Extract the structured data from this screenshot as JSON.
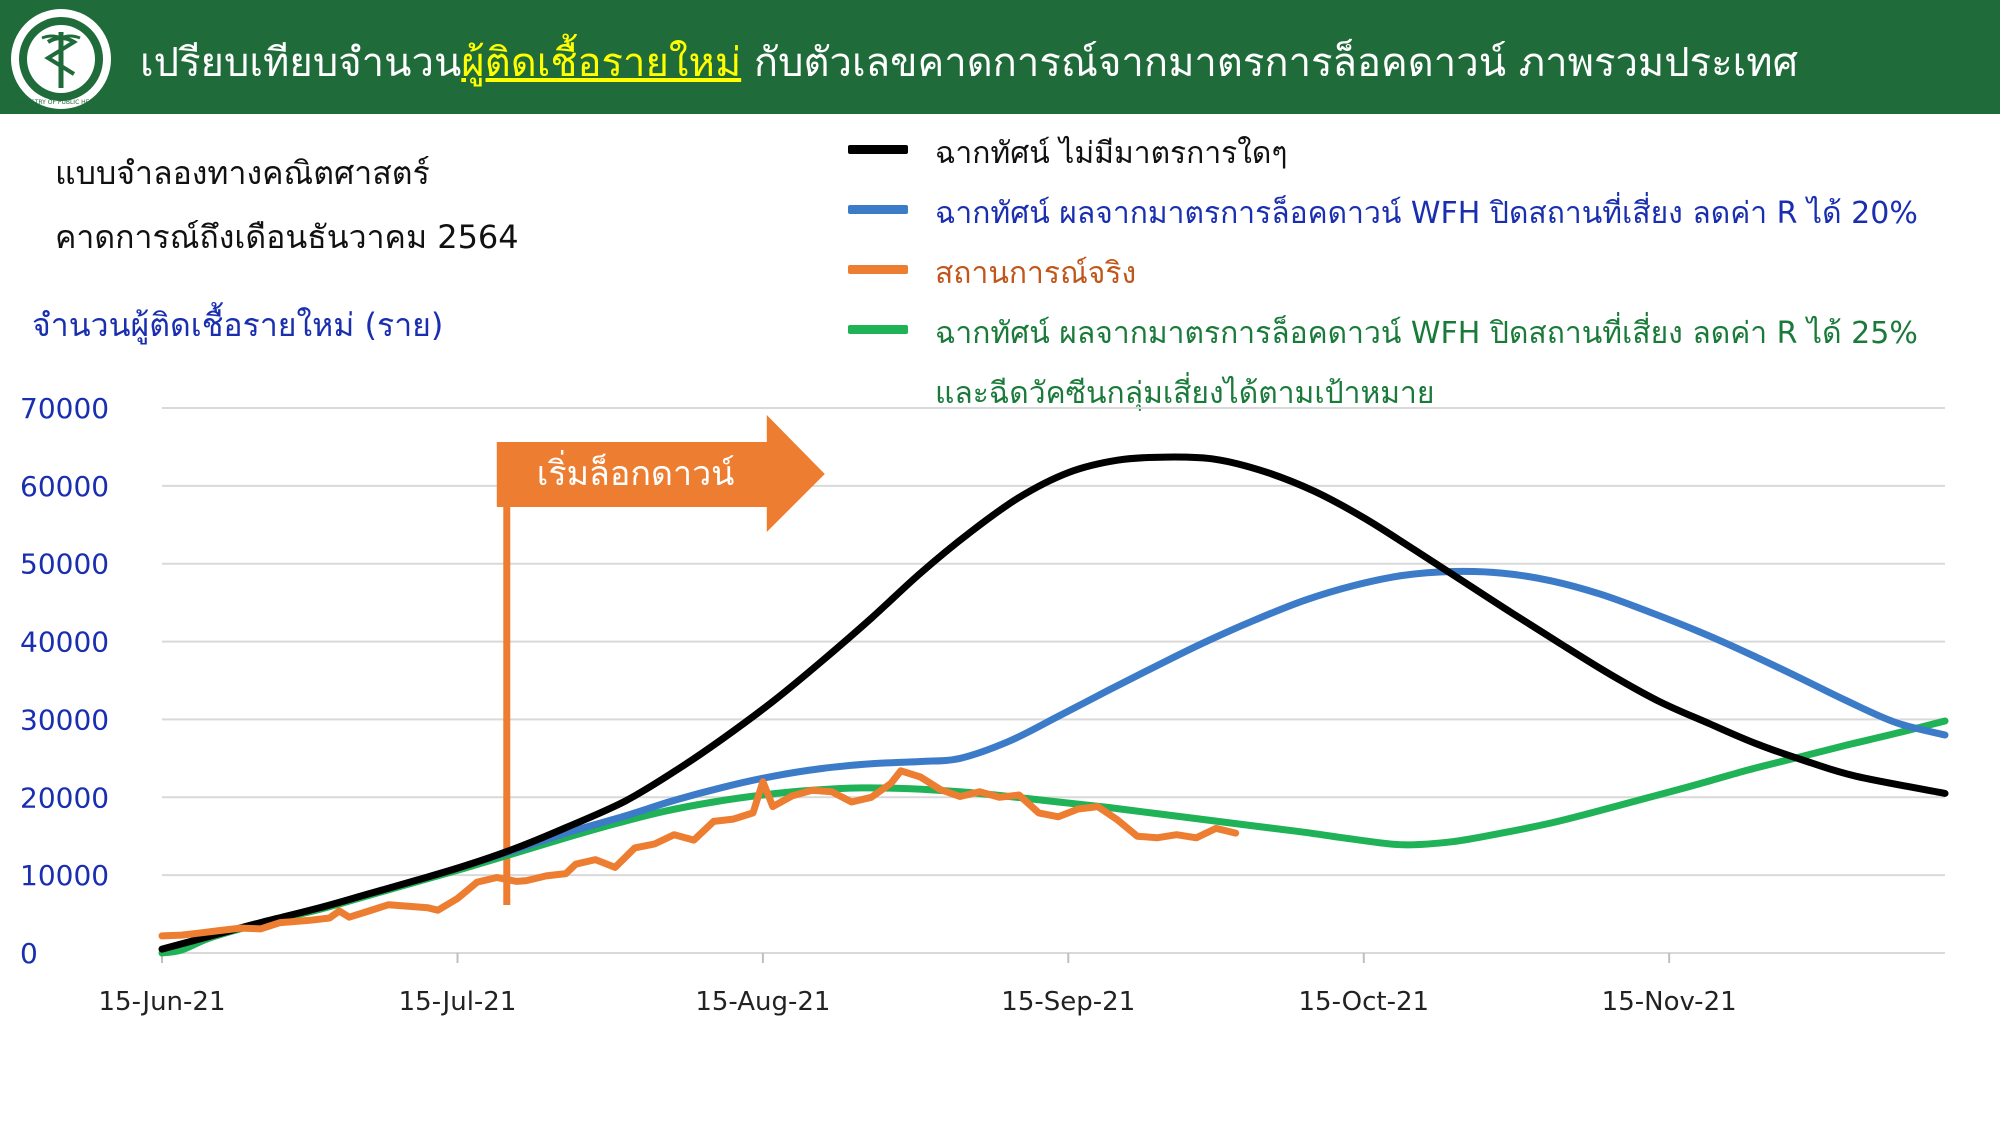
{
  "header": {
    "title_part1": "เปรียบเทียบจำนวน",
    "title_highlight": "ผู้ติดเชื้อรายใหม่",
    "title_part2": " กับตัวเลขคาดการณ์จากมาตรการล็อคดาวน์ ภาพรวมประเทศ",
    "logo_icon": "ministry-of-public-health-seal",
    "logo_text": "MINISTRY OF PUBLIC HEALTH",
    "bg_color": "#1f6b3a",
    "highlight_color": "#ffff00"
  },
  "subtitle": {
    "line1": "แบบจำลองทางคณิตศาสตร์",
    "line2": "คาดการณ์ถึงเดือนธันวาคม 2564"
  },
  "chart_data": {
    "type": "line",
    "ylabel": "จำนวนผู้ติดเชื้อรายใหม่ (ราย)",
    "ylim": [
      0,
      70000
    ],
    "yticks": [
      0,
      10000,
      20000,
      30000,
      40000,
      50000,
      60000,
      70000
    ],
    "xlim": [
      "2021-06-15",
      "2021-12-13"
    ],
    "xticks": [
      {
        "date": "2021-06-15",
        "label": "15-Jun-21"
      },
      {
        "date": "2021-07-15",
        "label": "15-Jul-21"
      },
      {
        "date": "2021-08-15",
        "label": "15-Aug-21"
      },
      {
        "date": "2021-09-15",
        "label": "15-Sep-21"
      },
      {
        "date": "2021-10-15",
        "label": "15-Oct-21"
      },
      {
        "date": "2021-11-15",
        "label": "15-Nov-21"
      }
    ],
    "grid": true,
    "legend_position": "top-right",
    "annotation": {
      "label": "เริ่มล็อกดาวน์",
      "date": "2021-07-20",
      "color": "#ed7d31"
    },
    "series": [
      {
        "name": "ฉากทัศน์ ไม่มีมาตรการใดๆ",
        "color": "#000000",
        "points": [
          [
            "2021-06-15",
            500
          ],
          [
            "2021-06-20",
            2200
          ],
          [
            "2021-06-25",
            3900
          ],
          [
            "2021-07-01",
            5800
          ],
          [
            "2021-07-06",
            7600
          ],
          [
            "2021-07-11",
            9400
          ],
          [
            "2021-07-16",
            11300
          ],
          [
            "2021-07-21",
            13500
          ],
          [
            "2021-07-26",
            16100
          ],
          [
            "2021-08-01",
            19500
          ],
          [
            "2021-08-06",
            23300
          ],
          [
            "2021-08-11",
            27600
          ],
          [
            "2021-08-16",
            32300
          ],
          [
            "2021-08-21",
            37500
          ],
          [
            "2021-08-26",
            43000
          ],
          [
            "2021-08-31",
            48800
          ],
          [
            "2021-09-05",
            54000
          ],
          [
            "2021-09-10",
            58500
          ],
          [
            "2021-09-15",
            61700
          ],
          [
            "2021-09-20",
            63300
          ],
          [
            "2021-09-25",
            63700
          ],
          [
            "2021-09-30",
            63400
          ],
          [
            "2021-10-05",
            61800
          ],
          [
            "2021-10-10",
            59300
          ],
          [
            "2021-10-15",
            55900
          ],
          [
            "2021-10-20",
            51900
          ],
          [
            "2021-10-25",
            47800
          ],
          [
            "2021-10-30",
            43700
          ],
          [
            "2021-11-04",
            39700
          ],
          [
            "2021-11-09",
            35800
          ],
          [
            "2021-11-14",
            32300
          ],
          [
            "2021-11-19",
            29500
          ],
          [
            "2021-11-24",
            26800
          ],
          [
            "2021-11-29",
            24600
          ],
          [
            "2021-12-04",
            22700
          ],
          [
            "2021-12-13",
            20500
          ]
        ]
      },
      {
        "name": "ฉากทัศน์ ผลจากมาตรการล็อคดาวน์ WFH ปิดสถานที่เสี่ยง ลดค่า R ได้ 20%",
        "color": "#3c7bc8",
        "points": [
          [
            "2021-07-16",
            11300
          ],
          [
            "2021-07-21",
            13300
          ],
          [
            "2021-07-26",
            15400
          ],
          [
            "2021-08-01",
            17600
          ],
          [
            "2021-08-06",
            19600
          ],
          [
            "2021-08-11",
            21300
          ],
          [
            "2021-08-16",
            22700
          ],
          [
            "2021-08-21",
            23700
          ],
          [
            "2021-08-26",
            24300
          ],
          [
            "2021-08-31",
            24600
          ],
          [
            "2021-09-04",
            25000
          ],
          [
            "2021-09-09",
            27200
          ],
          [
            "2021-09-14",
            30400
          ],
          [
            "2021-09-19",
            33700
          ],
          [
            "2021-09-24",
            36900
          ],
          [
            "2021-09-29",
            40000
          ],
          [
            "2021-10-04",
            42800
          ],
          [
            "2021-10-09",
            45300
          ],
          [
            "2021-10-14",
            47200
          ],
          [
            "2021-10-19",
            48500
          ],
          [
            "2021-10-24",
            49000
          ],
          [
            "2021-10-29",
            48800
          ],
          [
            "2021-11-03",
            47800
          ],
          [
            "2021-11-08",
            46100
          ],
          [
            "2021-11-13",
            43800
          ],
          [
            "2021-11-18",
            41300
          ],
          [
            "2021-11-23",
            38500
          ],
          [
            "2021-11-28",
            35500
          ],
          [
            "2021-12-03",
            32400
          ],
          [
            "2021-12-08",
            29600
          ],
          [
            "2021-12-13",
            28000
          ]
        ]
      },
      {
        "name": "สถานการณ์จริง",
        "color": "#ed7d31",
        "points": [
          [
            "2021-06-15",
            2200
          ],
          [
            "2021-06-17",
            2300
          ],
          [
            "2021-06-19",
            2600
          ],
          [
            "2021-06-21",
            2900
          ],
          [
            "2021-06-23",
            3200
          ],
          [
            "2021-06-25",
            3100
          ],
          [
            "2021-06-27",
            3900
          ],
          [
            "2021-06-28",
            4000
          ],
          [
            "2021-06-30",
            4200
          ],
          [
            "2021-07-02",
            4500
          ],
          [
            "2021-07-03",
            5400
          ],
          [
            "2021-07-04",
            4600
          ],
          [
            "2021-07-06",
            5400
          ],
          [
            "2021-07-08",
            6200
          ],
          [
            "2021-07-10",
            6000
          ],
          [
            "2021-07-12",
            5800
          ],
          [
            "2021-07-13",
            5500
          ],
          [
            "2021-07-15",
            7000
          ],
          [
            "2021-07-17",
            9100
          ],
          [
            "2021-07-19",
            9700
          ],
          [
            "2021-07-21",
            9200
          ],
          [
            "2021-07-22",
            9300
          ],
          [
            "2021-07-24",
            9900
          ],
          [
            "2021-07-26",
            10200
          ],
          [
            "2021-07-27",
            11400
          ],
          [
            "2021-07-29",
            12000
          ],
          [
            "2021-07-31",
            11000
          ],
          [
            "2021-08-02",
            13500
          ],
          [
            "2021-08-04",
            14000
          ],
          [
            "2021-08-06",
            15200
          ],
          [
            "2021-08-08",
            14500
          ],
          [
            "2021-08-10",
            16900
          ],
          [
            "2021-08-12",
            17200
          ],
          [
            "2021-08-14",
            18000
          ],
          [
            "2021-08-15",
            22000
          ],
          [
            "2021-08-16",
            18800
          ],
          [
            "2021-08-18",
            20200
          ],
          [
            "2021-08-20",
            20900
          ],
          [
            "2021-08-22",
            20700
          ],
          [
            "2021-08-24",
            19400
          ],
          [
            "2021-08-26",
            20000
          ],
          [
            "2021-08-28",
            21800
          ],
          [
            "2021-08-29",
            23400
          ],
          [
            "2021-08-31",
            22600
          ],
          [
            "2021-09-02",
            21000
          ],
          [
            "2021-09-04",
            20100
          ],
          [
            "2021-09-06",
            20700
          ],
          [
            "2021-09-08",
            20000
          ],
          [
            "2021-09-10",
            20300
          ],
          [
            "2021-09-12",
            18000
          ],
          [
            "2021-09-14",
            17500
          ],
          [
            "2021-09-16",
            18500
          ],
          [
            "2021-09-18",
            18800
          ],
          [
            "2021-09-20",
            17100
          ],
          [
            "2021-09-22",
            15000
          ],
          [
            "2021-09-24",
            14800
          ],
          [
            "2021-09-26",
            15200
          ],
          [
            "2021-09-28",
            14800
          ],
          [
            "2021-09-30",
            16000
          ],
          [
            "2021-10-02",
            15400
          ]
        ]
      },
      {
        "name": "ฉากทัศน์ ผลจากมาตรการล็อคดาวน์ WFH ปิดสถานที่เสี่ยง ลดค่า R ได้ 25%",
        "name_line2": "และฉีดวัคซีนกลุ่มเสี่ยงได้ตามเป้าหมาย",
        "color": "#1fb257",
        "points": [
          [
            "2021-06-15",
            0
          ],
          [
            "2021-06-17",
            400
          ],
          [
            "2021-06-20",
            2000
          ],
          [
            "2021-06-25",
            3800
          ],
          [
            "2021-07-01",
            5600
          ],
          [
            "2021-07-06",
            7400
          ],
          [
            "2021-07-11",
            9200
          ],
          [
            "2021-07-16",
            11000
          ],
          [
            "2021-07-21",
            12900
          ],
          [
            "2021-07-26",
            14800
          ],
          [
            "2021-07-31",
            16600
          ],
          [
            "2021-08-05",
            18200
          ],
          [
            "2021-08-10",
            19400
          ],
          [
            "2021-08-15",
            20300
          ],
          [
            "2021-08-20",
            20900
          ],
          [
            "2021-08-25",
            21200
          ],
          [
            "2021-08-30",
            21100
          ],
          [
            "2021-09-04",
            20700
          ],
          [
            "2021-09-09",
            20100
          ],
          [
            "2021-09-14",
            19400
          ],
          [
            "2021-09-19",
            18700
          ],
          [
            "2021-09-24",
            17900
          ],
          [
            "2021-09-29",
            17100
          ],
          [
            "2021-10-04",
            16300
          ],
          [
            "2021-10-09",
            15500
          ],
          [
            "2021-10-14",
            14600
          ],
          [
            "2021-10-19",
            13900
          ],
          [
            "2021-10-24",
            14300
          ],
          [
            "2021-10-29",
            15400
          ],
          [
            "2021-11-03",
            16700
          ],
          [
            "2021-11-08",
            18300
          ],
          [
            "2021-11-13",
            20000
          ],
          [
            "2021-11-18",
            21700
          ],
          [
            "2021-11-23",
            23500
          ],
          [
            "2021-11-28",
            25100
          ],
          [
            "2021-12-03",
            26700
          ],
          [
            "2021-12-08",
            28200
          ],
          [
            "2021-12-13",
            29800
          ]
        ]
      }
    ]
  }
}
